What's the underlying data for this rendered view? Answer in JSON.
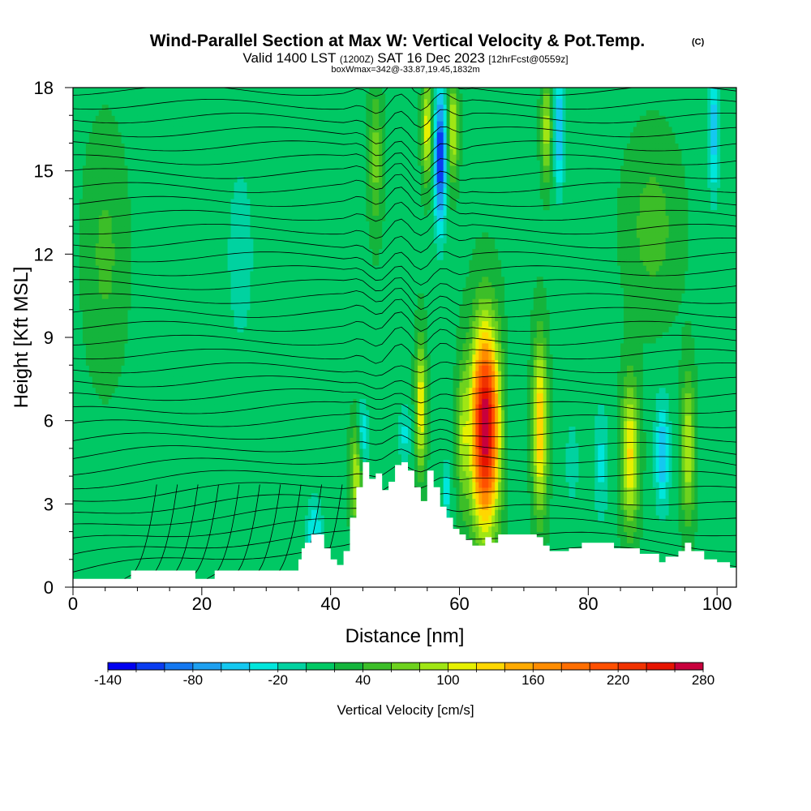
{
  "header": {
    "title": "Wind-Parallel Section at Max W: Vertical Velocity & Pot.Temp.",
    "copyright": "(C)",
    "valid_prefix": "Valid 1400 LST",
    "valid_utc": "(1200Z)",
    "valid_date": "SAT 16 Dec 2023",
    "forecast_info": "[12hrFcst@0559z]",
    "box_info": "boxWmax=342@-33.87,19.45,1832m"
  },
  "colorbar": {
    "label": "Vertical Velocity [cm/s]",
    "tick_labels": [
      "-140",
      "-80",
      "-20",
      "40",
      "100",
      "160",
      "220",
      "280"
    ],
    "levels": [
      -140,
      -120,
      -100,
      -80,
      -60,
      -40,
      -20,
      0,
      20,
      40,
      60,
      80,
      100,
      120,
      140,
      160,
      180,
      200,
      220,
      240,
      260,
      280
    ],
    "colors": [
      "#0000f0",
      "#0a3cf0",
      "#1478f0",
      "#1ea0f0",
      "#14c8f0",
      "#00e6dc",
      "#00d2a0",
      "#00c864",
      "#14b43c",
      "#3cbe28",
      "#6ed21e",
      "#a0e614",
      "#e6f000",
      "#ffd700",
      "#ffaa00",
      "#ff8c00",
      "#ff6e00",
      "#ff5000",
      "#f03200",
      "#e61400",
      "#c8003c"
    ]
  },
  "chart_data": {
    "type": "heatmap",
    "title": "Wind-Parallel Section at Max W: Vertical Velocity & Pot.Temp.",
    "xlabel": "Distance [nm]",
    "ylabel": "Height [Kft MSL]",
    "xlim": [
      0,
      103
    ],
    "ylim": [
      0,
      18
    ],
    "x_ticks": [
      0,
      20,
      40,
      60,
      80,
      100
    ],
    "y_ticks": [
      0,
      3,
      6,
      9,
      12,
      15,
      18
    ],
    "filled_variable": "Vertical Velocity [cm/s]",
    "contour_variable": "Potential Temperature",
    "background_w": 15,
    "w_features": [
      {
        "x": 64,
        "y": 5.8,
        "w": 270,
        "sx": 2.2,
        "sy": 3.5
      },
      {
        "x": 72.5,
        "y": 5.8,
        "w": 130,
        "sx": 1.1,
        "sy": 3.0
      },
      {
        "x": 86.5,
        "y": 4.8,
        "w": 110,
        "sx": 1.3,
        "sy": 2.6
      },
      {
        "x": 95.5,
        "y": 5.0,
        "w": 85,
        "sx": 1.0,
        "sy": 2.6
      },
      {
        "x": 54,
        "y": 6.5,
        "w": 105,
        "sx": 0.8,
        "sy": 2.4
      },
      {
        "x": 44,
        "y": 4.0,
        "w": 90,
        "sx": 0.9,
        "sy": 1.8
      },
      {
        "x": 60.5,
        "y": 5.5,
        "w": 60,
        "sx": 0.9,
        "sy": 2.5
      },
      {
        "x": 57,
        "y": 15.5,
        "w": -140,
        "sx": 0.9,
        "sy": 2.5
      },
      {
        "x": 55,
        "y": 16.5,
        "w": 100,
        "sx": 0.8,
        "sy": 1.8
      },
      {
        "x": 59,
        "y": 16.5,
        "w": 90,
        "sx": 0.8,
        "sy": 1.8
      },
      {
        "x": 75.5,
        "y": 16.5,
        "w": -80,
        "sx": 0.8,
        "sy": 2.2
      },
      {
        "x": 73.5,
        "y": 16.5,
        "w": 80,
        "sx": 0.8,
        "sy": 1.8
      },
      {
        "x": 99.5,
        "y": 16.5,
        "w": -70,
        "sx": 0.8,
        "sy": 2.5
      },
      {
        "x": 47,
        "y": 15.5,
        "w": 55,
        "sx": 1.0,
        "sy": 2.5
      },
      {
        "x": 91.5,
        "y": 4.8,
        "w": -75,
        "sx": 1.1,
        "sy": 2.0
      },
      {
        "x": 82,
        "y": 4.5,
        "w": -40,
        "sx": 1.2,
        "sy": 2.2
      },
      {
        "x": 77.5,
        "y": 4.5,
        "w": -25,
        "sx": 1.2,
        "sy": 2.0
      },
      {
        "x": 45,
        "y": 5.5,
        "w": -60,
        "sx": 0.9,
        "sy": 1.2
      },
      {
        "x": 37.5,
        "y": 2.0,
        "w": -55,
        "sx": 1.2,
        "sy": 1.3
      },
      {
        "x": 51.5,
        "y": 5.5,
        "w": -40,
        "sx": 1.0,
        "sy": 1.2
      },
      {
        "x": 58,
        "y": 3.5,
        "w": -45,
        "sx": 0.7,
        "sy": 1.2
      },
      {
        "x": 68,
        "y": 6.0,
        "w": -20,
        "sx": 1.5,
        "sy": 3.0
      },
      {
        "x": 26,
        "y": 12.0,
        "w": -25,
        "sx": 2.5,
        "sy": 4.0
      },
      {
        "x": 5,
        "y": 12.0,
        "w": 30,
        "sx": 3.0,
        "sy": 4.0
      },
      {
        "x": 90,
        "y": 13.0,
        "w": 35,
        "sx": 4.0,
        "sy": 3.0
      }
    ],
    "terrain": [
      [
        0,
        0.3
      ],
      [
        2,
        0.3
      ],
      [
        5,
        0.3
      ],
      [
        9,
        0.6
      ],
      [
        12,
        0.6
      ],
      [
        15,
        0.6
      ],
      [
        18,
        0.6
      ],
      [
        19,
        0.3
      ],
      [
        21,
        0.3
      ],
      [
        22,
        0.6
      ],
      [
        25,
        0.6
      ],
      [
        30,
        0.6
      ],
      [
        32,
        0.6
      ],
      [
        34,
        0.6
      ],
      [
        35,
        1.0
      ],
      [
        35.5,
        1.4
      ],
      [
        36,
        1.6
      ],
      [
        37,
        1.9
      ],
      [
        38,
        1.9
      ],
      [
        39,
        1.4
      ],
      [
        40,
        1.0
      ],
      [
        41,
        0.8
      ],
      [
        42,
        1.3
      ],
      [
        43,
        2.5
      ],
      [
        44,
        3.6
      ],
      [
        45,
        4.5
      ],
      [
        46,
        3.9
      ],
      [
        47,
        4.1
      ],
      [
        48,
        3.5
      ],
      [
        49,
        3.8
      ],
      [
        50,
        4.4
      ],
      [
        51,
        4.5
      ],
      [
        52,
        4.2
      ],
      [
        53,
        3.6
      ],
      [
        54,
        3.1
      ],
      [
        55,
        4.2
      ],
      [
        56,
        3.6
      ],
      [
        57,
        2.9
      ],
      [
        58,
        2.5
      ],
      [
        59,
        2.1
      ],
      [
        60,
        1.9
      ],
      [
        61,
        1.7
      ],
      [
        62,
        1.5
      ],
      [
        63,
        1.5
      ],
      [
        64,
        1.8
      ],
      [
        65,
        1.6
      ],
      [
        66,
        1.9
      ],
      [
        68,
        1.9
      ],
      [
        70,
        1.9
      ],
      [
        71,
        1.9
      ],
      [
        72,
        1.8
      ],
      [
        73,
        1.5
      ],
      [
        74,
        1.3
      ],
      [
        76,
        1.3
      ],
      [
        77,
        1.4
      ],
      [
        79,
        1.6
      ],
      [
        82,
        1.6
      ],
      [
        84,
        1.4
      ],
      [
        86,
        1.4
      ],
      [
        88,
        1.2
      ],
      [
        90,
        1.2
      ],
      [
        91,
        0.9
      ],
      [
        92,
        1.1
      ],
      [
        94,
        1.3
      ],
      [
        95,
        1.6
      ],
      [
        96,
        1.3
      ],
      [
        98,
        1.0
      ],
      [
        100,
        0.9
      ],
      [
        102,
        0.7
      ],
      [
        103,
        0.7
      ]
    ]
  }
}
